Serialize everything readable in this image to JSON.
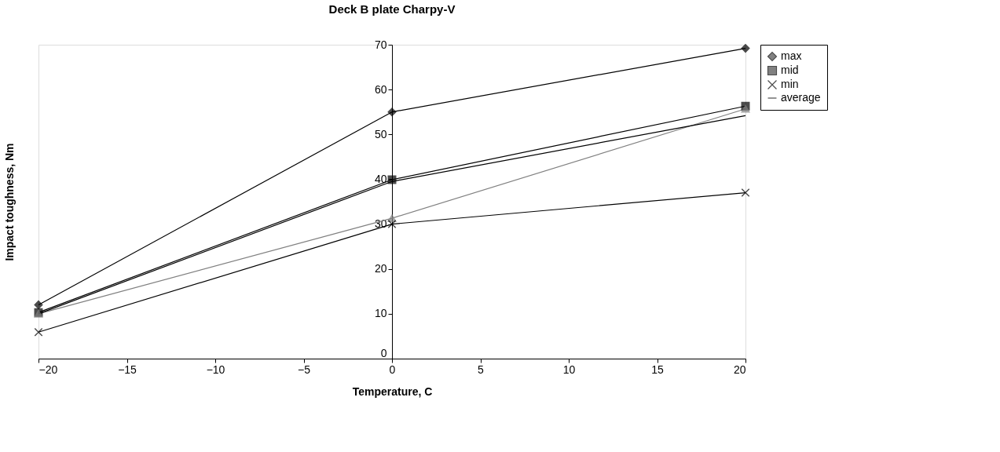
{
  "chart_data": {
    "type": "line",
    "title": "Deck B plate Charpy-V",
    "xlabel": "Temperature, C",
    "ylabel": "Impact toughness, Nm",
    "x": [
      -20,
      0,
      20
    ],
    "series": [
      {
        "name": "max",
        "color": "#000000",
        "marker": "diamond",
        "values": [
          12,
          55,
          69.2
        ]
      },
      {
        "name": "mid",
        "color": "#000000",
        "marker": "square",
        "values": [
          10.3,
          39.9,
          56.3
        ]
      },
      {
        "name": null,
        "color": "#808080",
        "marker": "triangle",
        "values": [
          10,
          31.3,
          55.7
        ]
      },
      {
        "name": "min",
        "color": "#000000",
        "marker": "cross",
        "values": [
          5.9,
          30,
          37
        ]
      },
      {
        "name": "average",
        "color": "#000000",
        "marker": "none",
        "values": [
          10,
          39.5,
          54.2
        ]
      }
    ],
    "xlim": [
      -20,
      20
    ],
    "xticks": [
      -20,
      -15,
      -10,
      -5,
      0,
      5,
      10,
      15,
      20
    ],
    "ylim": [
      0,
      70
    ],
    "yticks": [
      0,
      10,
      20,
      30,
      40,
      50,
      60,
      70
    ],
    "grid": false,
    "legend": "right"
  }
}
